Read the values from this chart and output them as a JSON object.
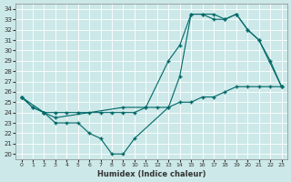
{
  "xlabel": "Humidex (Indice chaleur)",
  "ylabel": "",
  "bg_color": "#cce8e8",
  "grid_color": "#ffffff",
  "line_color": "#006868",
  "xlim": [
    -0.5,
    23.5
  ],
  "ylim": [
    19.5,
    34.5
  ],
  "xticks": [
    0,
    1,
    2,
    3,
    4,
    5,
    6,
    7,
    8,
    9,
    10,
    11,
    12,
    13,
    14,
    15,
    16,
    17,
    18,
    19,
    20,
    21,
    22,
    23
  ],
  "yticks": [
    20,
    21,
    22,
    23,
    24,
    25,
    26,
    27,
    28,
    29,
    30,
    31,
    32,
    33,
    34
  ],
  "line1": {
    "x": [
      0,
      2,
      3,
      9,
      11,
      13,
      14,
      15,
      16,
      17,
      18,
      19,
      20,
      21,
      23
    ],
    "y": [
      25.5,
      24.0,
      23.5,
      24.5,
      24.5,
      29.0,
      30.5,
      33.5,
      33.5,
      33.5,
      33.0,
      33.5,
      32.0,
      31.0,
      26.5
    ]
  },
  "line2": {
    "x": [
      0,
      1,
      2,
      3,
      4,
      5,
      6,
      7,
      8,
      9,
      10,
      13,
      14,
      15,
      16,
      17,
      18,
      19,
      20,
      21,
      22,
      23
    ],
    "y": [
      25.5,
      24.5,
      24.0,
      23.0,
      23.0,
      23.0,
      22.0,
      21.5,
      20.0,
      20.0,
      21.5,
      24.5,
      27.5,
      33.5,
      33.5,
      33.0,
      33.0,
      33.5,
      32.0,
      31.0,
      29.0,
      26.5
    ]
  },
  "line3": {
    "x": [
      0,
      1,
      2,
      3,
      4,
      5,
      6,
      7,
      8,
      9,
      10,
      11,
      12,
      13,
      14,
      15,
      16,
      17,
      18,
      19,
      20,
      21,
      22,
      23
    ],
    "y": [
      25.5,
      24.5,
      24.0,
      24.0,
      24.0,
      24.0,
      24.0,
      24.0,
      24.0,
      24.0,
      24.0,
      24.5,
      24.5,
      24.5,
      25.0,
      25.0,
      25.5,
      25.5,
      26.0,
      26.5,
      26.5,
      26.5,
      26.5,
      26.5
    ]
  }
}
